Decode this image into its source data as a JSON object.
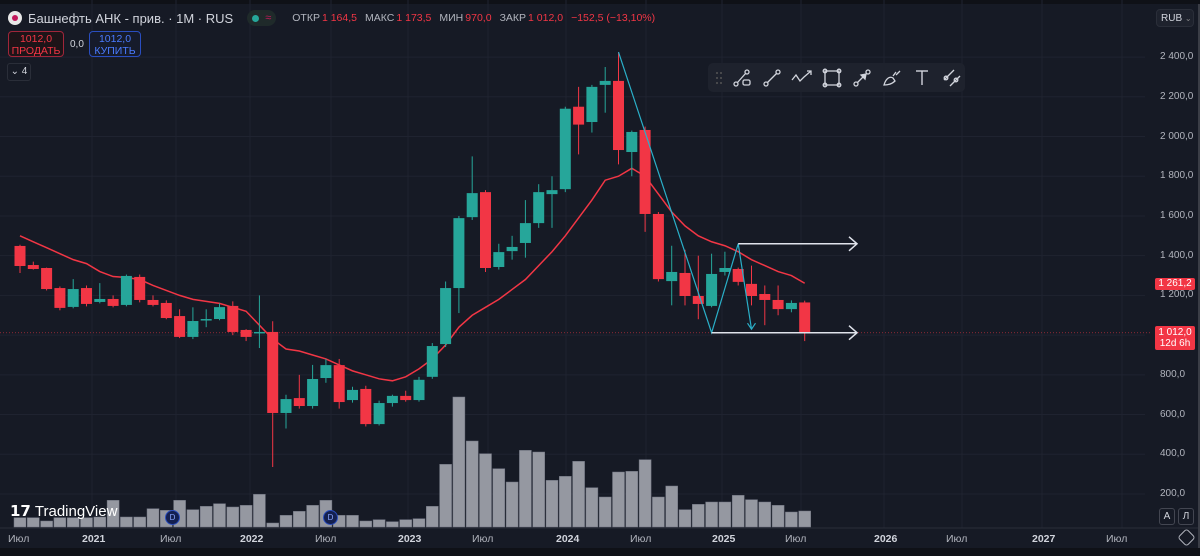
{
  "legend": {
    "title": "Башнефть АНК - прив. · 1M · RUS",
    "ohlc": [
      {
        "key": "ОТКР",
        "value": "1 164,5"
      },
      {
        "key": "МАКС",
        "value": "1 173,5"
      },
      {
        "key": "МИН",
        "value": "970,0"
      },
      {
        "key": "ЗАКР",
        "value": "1 012,0"
      }
    ],
    "change": "−152,5 (−13,10%)"
  },
  "trade": {
    "sell_price": "1012,0",
    "sell_label": "ПРОДАТЬ",
    "spread": "0,0",
    "buy_price": "1012,0",
    "buy_label": "КУПИТЬ"
  },
  "indicators_collapsed": "4",
  "currency": "RUB",
  "toolbar_tools": [
    "drag-handle-icon",
    "line-tool-icon",
    "trend-line-icon",
    "path-icon",
    "rectangle-icon",
    "arrow-icon",
    "brush-icon",
    "text-icon",
    "parallel-channel-icon"
  ],
  "price_axis": [
    "2 400,0",
    "2 200,0",
    "2 000,0",
    "1 800,0",
    "1 600,0",
    "1 400,0",
    "1 200,0",
    "800,0",
    "600,0",
    "400,0",
    "200,0"
  ],
  "ma_tag": "1 261,2",
  "last_price_tag": "1 012,0",
  "countdown": "12d 6h",
  "time_axis": [
    {
      "label": "Июл",
      "year": false
    },
    {
      "label": "2021",
      "year": true
    },
    {
      "label": "Июл",
      "year": false
    },
    {
      "label": "2022",
      "year": true
    },
    {
      "label": "Июл",
      "year": false
    },
    {
      "label": "2023",
      "year": true
    },
    {
      "label": "Июл",
      "year": false
    },
    {
      "label": "2024",
      "year": true
    },
    {
      "label": "Июл",
      "year": false
    },
    {
      "label": "2025",
      "year": true
    },
    {
      "label": "Июл",
      "year": false
    },
    {
      "label": "2026",
      "year": true
    },
    {
      "label": "Июл",
      "year": false
    },
    {
      "label": "2027",
      "year": true
    },
    {
      "label": "Июл",
      "year": false
    }
  ],
  "axis_buttons": {
    "auto": "A",
    "log": "Л"
  },
  "brand": "TradingView",
  "dividend_badge": "D",
  "colors": {
    "up": "#26a69a",
    "down": "#f23645",
    "ma": "#f23645",
    "volume": "#9598a1",
    "drawing": "#2ab0c9",
    "hline": "#e0e3eb"
  },
  "chart_data": {
    "type": "candlestick",
    "interval": "1M",
    "ylim": [
      200,
      2400
    ],
    "candles": [
      [
        1449,
        1455,
        1313,
        1348
      ],
      [
        1353,
        1370,
        1330,
        1333
      ],
      [
        1338,
        1340,
        1225,
        1232
      ],
      [
        1237,
        1245,
        1125,
        1137
      ],
      [
        1142,
        1282,
        1135,
        1232
      ],
      [
        1237,
        1250,
        1145,
        1157
      ],
      [
        1167,
        1262,
        1160,
        1182
      ],
      [
        1182,
        1200,
        1140,
        1147
      ],
      [
        1152,
        1305,
        1145,
        1298
      ],
      [
        1293,
        1305,
        1165,
        1177
      ],
      [
        1177,
        1200,
        1145,
        1152
      ],
      [
        1162,
        1175,
        1080,
        1086
      ],
      [
        1096,
        1130,
        985,
        991
      ],
      [
        991,
        1140,
        980,
        1071
      ],
      [
        1076,
        1130,
        1040,
        1081
      ],
      [
        1081,
        1160,
        1075,
        1141
      ],
      [
        1147,
        1170,
        1000,
        1016
      ],
      [
        1026,
        1030,
        970,
        991
      ],
      [
        1011,
        1200,
        935,
        1016
      ],
      [
        1016,
        1070,
        336,
        608
      ],
      [
        608,
        700,
        530,
        678
      ],
      [
        683,
        800,
        630,
        643
      ],
      [
        643,
        850,
        630,
        779
      ],
      [
        784,
        880,
        760,
        849
      ],
      [
        849,
        880,
        630,
        663
      ],
      [
        673,
        740,
        660,
        724
      ],
      [
        729,
        745,
        540,
        552
      ],
      [
        552,
        670,
        545,
        658
      ],
      [
        658,
        700,
        640,
        694
      ],
      [
        694,
        720,
        665,
        673
      ],
      [
        673,
        790,
        665,
        775
      ],
      [
        790,
        960,
        780,
        945
      ],
      [
        955,
        1270,
        940,
        1237
      ],
      [
        1237,
        1600,
        1111,
        1589
      ],
      [
        1594,
        1900,
        1580,
        1715
      ],
      [
        1720,
        1730,
        1318,
        1338
      ],
      [
        1343,
        1460,
        1330,
        1418
      ],
      [
        1423,
        1500,
        1380,
        1444
      ],
      [
        1464,
        1680,
        1390,
        1564
      ],
      [
        1564,
        1760,
        1540,
        1720
      ],
      [
        1710,
        1800,
        1540,
        1730
      ],
      [
        1735,
        2150,
        1720,
        2140
      ],
      [
        2150,
        2250,
        1910,
        2060
      ],
      [
        2073,
        2260,
        2020,
        2250
      ],
      [
        2260,
        2350,
        2120,
        2280
      ],
      [
        2280,
        2425,
        1860,
        1932
      ],
      [
        1922,
        2030,
        1800,
        2023
      ],
      [
        2033,
        2050,
        1520,
        1610
      ],
      [
        1610,
        1620,
        1270,
        1282
      ],
      [
        1272,
        1450,
        1150,
        1318
      ],
      [
        1313,
        1430,
        1150,
        1197
      ],
      [
        1197,
        1400,
        1080,
        1157
      ],
      [
        1147,
        1410,
        1140,
        1308
      ],
      [
        1318,
        1420,
        1300,
        1338
      ],
      [
        1333,
        1340,
        1250,
        1268
      ],
      [
        1258,
        1350,
        1150,
        1197
      ],
      [
        1207,
        1250,
        1050,
        1177
      ],
      [
        1177,
        1250,
        1100,
        1131
      ],
      [
        1131,
        1175,
        1115,
        1162
      ],
      [
        1164.5,
        1173.5,
        970,
        1012
      ]
    ],
    "ma": [
      1500,
      1470,
      1440,
      1410,
      1380,
      1360,
      1320,
      1295,
      1290,
      1280,
      1250,
      1225,
      1200,
      1180,
      1170,
      1160,
      1140,
      1120,
      1050,
      980,
      930,
      920,
      900,
      880,
      850,
      820,
      800,
      780,
      770,
      790,
      830,
      880,
      950,
      1040,
      1100,
      1140,
      1180,
      1230,
      1280,
      1350,
      1420,
      1500,
      1590,
      1680,
      1780,
      1800,
      1840,
      1800,
      1710,
      1620,
      1550,
      1500,
      1470,
      1450,
      1420,
      1380,
      1350,
      1320,
      1300,
      1261.2
    ],
    "volume": [
      28,
      28,
      18,
      28,
      28,
      28,
      30,
      80,
      30,
      30,
      55,
      50,
      80,
      52,
      62,
      70,
      60,
      65,
      98,
      12,
      35,
      47,
      65,
      80,
      35,
      35,
      18,
      22,
      16,
      22,
      25,
      62,
      188,
      390,
      258,
      220,
      175,
      135,
      230,
      225,
      140,
      152,
      197,
      118,
      90,
      165,
      167,
      202,
      90,
      123,
      52,
      68,
      75,
      75,
      95,
      82,
      75,
      65,
      45,
      48
    ],
    "dividends_at": [
      11,
      23
    ],
    "drawings": {
      "zigzag": [
        [
          45,
          2425
        ],
        [
          52,
          1012
        ],
        [
          54,
          1460
        ],
        [
          55,
          1030
        ]
      ],
      "horizontal_rays": [
        {
          "from": 54,
          "price": 1460
        },
        {
          "from": 52,
          "price": 1012
        }
      ]
    }
  }
}
